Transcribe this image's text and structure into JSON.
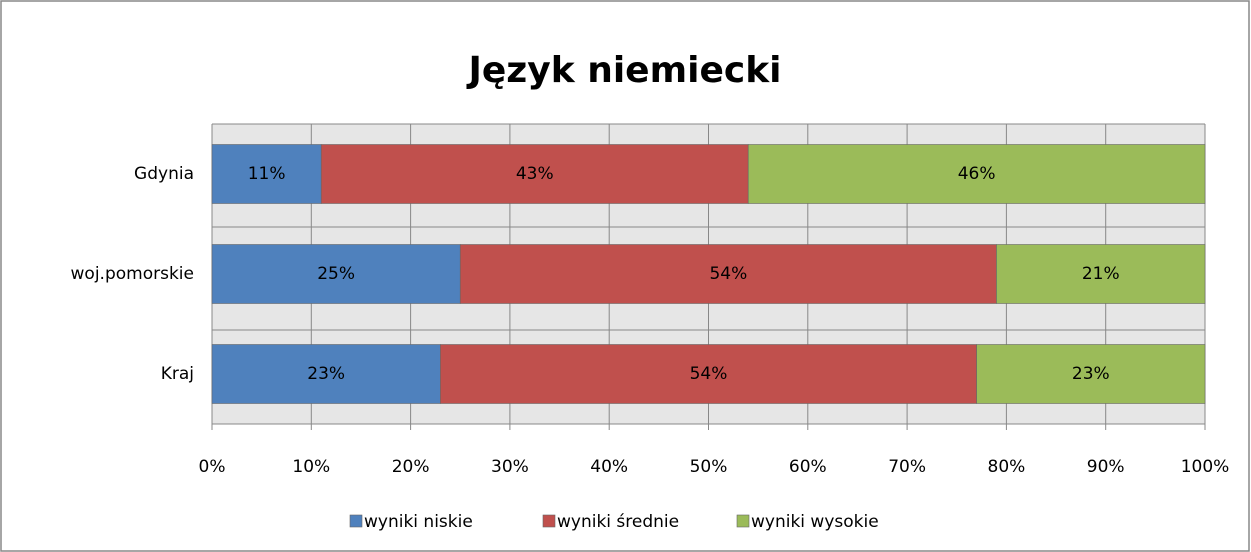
{
  "chart_data": {
    "type": "stacked-barh",
    "title": "Język niemiecki",
    "categories": [
      "Gdynia",
      "woj.pomorskie",
      "Kraj"
    ],
    "series": [
      {
        "name": "wyniki niskie",
        "color": "#4f81bd",
        "values": [
          11,
          25,
          23
        ],
        "value_labels": [
          "11%",
          "25%",
          "23%"
        ]
      },
      {
        "name": "wyniki średnie",
        "color": "#c0504d",
        "values": [
          43,
          54,
          54
        ],
        "value_labels": [
          "43%",
          "54%",
          "54%"
        ]
      },
      {
        "name": "wyniki wysokie",
        "color": "#9bbb59",
        "values": [
          46,
          21,
          23
        ],
        "value_labels": [
          "46%",
          "21%",
          "23%"
        ]
      }
    ],
    "xlim": [
      0,
      100
    ],
    "xticks": [
      {
        "value": 0,
        "label": "0%"
      },
      {
        "value": 10,
        "label": "10%"
      },
      {
        "value": 20,
        "label": "20%"
      },
      {
        "value": 30,
        "label": "30%"
      },
      {
        "value": 40,
        "label": "40%"
      },
      {
        "value": 50,
        "label": "50%"
      },
      {
        "value": 60,
        "label": "60%"
      },
      {
        "value": 70,
        "label": "70%"
      },
      {
        "value": 80,
        "label": "80%"
      },
      {
        "value": 90,
        "label": "90%"
      },
      {
        "value": 100,
        "label": "100%"
      }
    ],
    "grid": true,
    "legend": "bottom"
  }
}
